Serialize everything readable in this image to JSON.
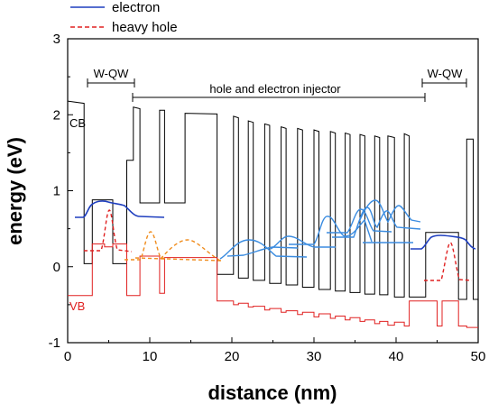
{
  "chart_data": {
    "type": "line",
    "xlabel": "distance (nm)",
    "ylabel": "energy (eV)",
    "xlim": [
      0,
      50
    ],
    "ylim": [
      -1,
      3
    ],
    "xticks": [
      "0",
      "10",
      "20",
      "30",
      "40",
      "50"
    ],
    "yticks": [
      "-1",
      "0",
      "1",
      "2",
      "3"
    ],
    "grid": false,
    "legend": {
      "placement": "top-left",
      "entries": [
        {
          "name": "electron",
          "color": "#1f3fbf",
          "style": "solid"
        },
        {
          "name": "heavy hole",
          "color": "#e02020",
          "style": "dashed"
        }
      ]
    },
    "annotations": {
      "qw_left": "W-QW",
      "qw_right": "W-QW",
      "injector": "hole and electron injector",
      "cb": "CB",
      "vb": "VB"
    },
    "series": [
      {
        "name": "CB",
        "color": "#000000",
        "x": [
          0,
          2,
          2,
          3,
          3,
          4.5,
          4.5,
          5.5,
          5.5,
          7.2,
          7.2,
          8,
          8,
          8.8,
          8.8,
          9.3,
          9.3,
          11.2,
          11.2,
          11.8,
          11.8,
          14.3,
          14.3,
          18.2,
          18.2,
          20.2,
          20.2,
          20.8,
          20.8,
          22,
          22,
          22.6,
          22.6,
          24,
          24,
          24.6,
          24.6,
          26,
          26,
          26.6,
          26.6,
          28,
          28,
          28.6,
          28.6,
          30,
          30,
          30.6,
          30.6,
          32,
          32,
          32.6,
          32.6,
          33.8,
          33.8,
          34.4,
          34.4,
          35.6,
          35.6,
          36.2,
          36.2,
          37.4,
          37.4,
          38,
          38,
          39,
          39,
          39.8,
          39.8,
          41,
          41,
          41.6,
          41.6,
          43.6,
          43.6,
          45,
          45,
          45.6,
          45.6,
          47.6,
          47.6,
          48.6,
          48.6,
          49.4,
          49.4,
          50
        ],
        "y": [
          2.18,
          2.15,
          0.04,
          0.04,
          0.88,
          0.88,
          0.88,
          0.88,
          0.04,
          0.04,
          1.4,
          1.4,
          2.1,
          2.08,
          0.84,
          0.84,
          0.84,
          0.84,
          2.06,
          2.06,
          0.84,
          0.84,
          2.02,
          2.01,
          -0.1,
          -0.1,
          1.98,
          1.96,
          -0.15,
          -0.15,
          1.92,
          1.9,
          -0.18,
          -0.18,
          1.88,
          1.86,
          -0.22,
          -0.22,
          1.84,
          1.82,
          -0.24,
          -0.24,
          1.82,
          1.8,
          -0.27,
          -0.27,
          1.8,
          1.78,
          -0.3,
          -0.3,
          1.78,
          1.76,
          -0.32,
          -0.32,
          1.76,
          1.74,
          -0.34,
          -0.34,
          1.74,
          1.72,
          -0.36,
          -0.36,
          1.72,
          1.7,
          -0.37,
          -0.37,
          1.72,
          1.7,
          -0.4,
          -0.4,
          1.75,
          1.72,
          -0.4,
          -0.4,
          0.45,
          0.45,
          0.45,
          0.45,
          0.45,
          0.45,
          -0.43,
          -0.43,
          1.68,
          1.68,
          -0.43,
          -0.43
        ]
      },
      {
        "name": "VB",
        "color": "#e02020",
        "x": [
          0,
          2,
          2,
          3,
          3,
          4.5,
          4.5,
          5.5,
          5.5,
          7.2,
          7.2,
          8,
          8,
          8.8,
          8.8,
          11.2,
          11.2,
          11.8,
          11.8,
          18.2,
          18.2,
          20.2,
          20.2,
          20.8,
          20.8,
          22,
          22,
          22.6,
          22.6,
          24,
          24,
          24.6,
          24.6,
          26,
          26,
          26.6,
          26.6,
          28,
          28,
          28.6,
          28.6,
          30,
          30,
          30.6,
          30.6,
          32,
          32,
          32.6,
          32.6,
          33.8,
          33.8,
          34.4,
          34.4,
          35.6,
          35.6,
          36.2,
          36.2,
          37.4,
          37.4,
          38,
          38,
          39,
          39,
          39.8,
          39.8,
          41,
          41,
          41.6,
          41.6,
          43.6,
          43.6,
          45,
          45,
          45.6,
          45.6,
          47.6,
          47.6,
          48.6,
          48.6,
          49.4,
          49.4,
          50
        ],
        "y": [
          -0.38,
          -0.38,
          -0.38,
          -0.38,
          0.3,
          0.3,
          0.26,
          0.26,
          0.3,
          0.3,
          -0.38,
          -0.38,
          -0.38,
          -0.38,
          0.14,
          0.14,
          -0.35,
          -0.35,
          0.12,
          0.12,
          -0.45,
          -0.45,
          -0.5,
          -0.5,
          -0.48,
          -0.48,
          -0.53,
          -0.53,
          -0.52,
          -0.52,
          -0.57,
          -0.57,
          -0.55,
          -0.55,
          -0.6,
          -0.6,
          -0.58,
          -0.58,
          -0.63,
          -0.63,
          -0.6,
          -0.6,
          -0.66,
          -0.66,
          -0.62,
          -0.62,
          -0.68,
          -0.68,
          -0.65,
          -0.65,
          -0.7,
          -0.7,
          -0.67,
          -0.67,
          -0.72,
          -0.72,
          -0.7,
          -0.7,
          -0.75,
          -0.75,
          -0.72,
          -0.72,
          -0.77,
          -0.77,
          -0.73,
          -0.73,
          -0.78,
          -0.78,
          -0.45,
          -0.45,
          -0.45,
          -0.45,
          -0.78,
          -0.78,
          -0.45,
          -0.45,
          -0.78,
          -0.78,
          -0.8,
          -0.8,
          -0.8,
          -0.8
        ]
      }
    ]
  }
}
